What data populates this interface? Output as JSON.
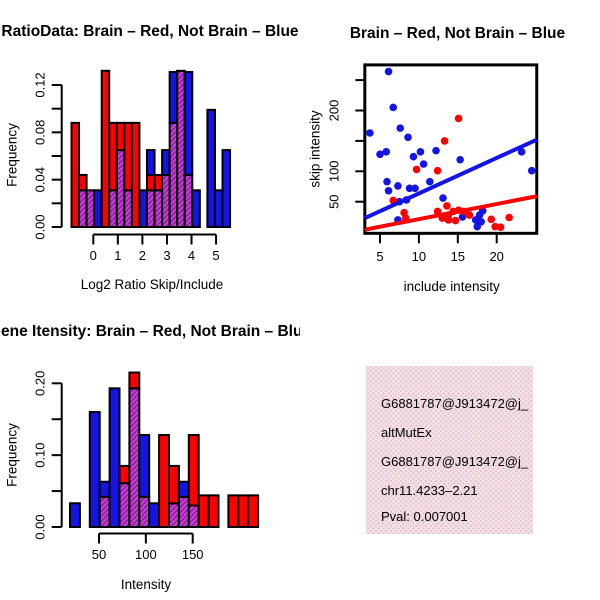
{
  "colors": {
    "red": "#FF0000",
    "blue": "#1414E6",
    "purple_dark": "#8A1FA8",
    "purple_light": "#CC3FD0",
    "black": "#000000",
    "pval_red": "#B22222",
    "box_pink": "#F8DCEA",
    "box_dot": "#C9C5AC"
  },
  "chart_data": [
    {
      "id": "hist_ratio",
      "type": "bar",
      "title": "RatioData: Brain – Red, Not Brain – Blue",
      "xlabel": "Log2 Ratio Skip/Include",
      "ylabel": "Frequency",
      "xlim": [
        -0.85,
        5.45
      ],
      "ylim": [
        0,
        0.138
      ],
      "bin_width": 0.3,
      "grid": false,
      "xticks": {
        "values": [
          0,
          1,
          2,
          3,
          4,
          5
        ],
        "labels": [
          "0",
          "1",
          "2",
          "3",
          "4",
          "5"
        ]
      },
      "yticks": {
        "values": [
          0,
          0.02,
          0.04,
          0.06,
          0.08,
          0.1,
          0.12
        ],
        "labels": [
          "0.00",
          "",
          "0.04",
          "",
          "0.08",
          "",
          "0.12"
        ]
      },
      "series_note": "segments are stacked bottom-up; purple = red/blue overlap hatch",
      "bins": [
        {
          "segments": [
            [
              "red",
              0.088
            ]
          ]
        },
        {
          "segments": [
            [
              "purple",
              0.031
            ],
            [
              "red",
              0.044
            ]
          ]
        },
        {
          "segments": [
            [
              "purple",
              0.031
            ]
          ]
        },
        {
          "segments": [
            [
              "blue",
              0.031
            ]
          ]
        },
        {
          "segments": [
            [
              "red",
              0.132
            ]
          ]
        },
        {
          "segments": [
            [
              "purple",
              0.031
            ],
            [
              "red",
              0.088
            ]
          ]
        },
        {
          "segments": [
            [
              "purple",
              0.065
            ],
            [
              "red",
              0.088
            ]
          ]
        },
        {
          "segments": [
            [
              "purple",
              0.031
            ],
            [
              "red",
              0.088
            ]
          ]
        },
        {
          "segments": [
            [
              "red",
              0.088
            ]
          ]
        },
        {
          "segments": [
            [
              "blue",
              0.031
            ]
          ]
        },
        {
          "segments": [
            [
              "purple",
              0.031
            ],
            [
              "red",
              0.044
            ],
            [
              "blue",
              0.065
            ]
          ]
        },
        {
          "segments": [
            [
              "purple",
              0.031
            ],
            [
              "red",
              0.044
            ]
          ]
        },
        {
          "segments": [
            [
              "purple",
              0.044
            ],
            [
              "blue",
              0.065
            ]
          ]
        },
        {
          "segments": [
            [
              "purple",
              0.088
            ],
            [
              "blue",
              0.131
            ]
          ]
        },
        {
          "segments": [
            [
              "purple",
              0.132
            ]
          ]
        },
        {
          "segments": [
            [
              "purple",
              0.044
            ],
            [
              "blue",
              0.131
            ]
          ]
        },
        {
          "segments": [
            [
              "blue",
              0.031
            ]
          ]
        },
        {
          "segments": []
        },
        {
          "segments": [
            [
              "blue",
              0.099
            ]
          ]
        },
        {
          "segments": [
            [
              "blue",
              0.031
            ]
          ]
        },
        {
          "segments": [
            [
              "blue",
              0.065
            ]
          ]
        }
      ]
    },
    {
      "id": "scatter_intensity",
      "type": "scatter",
      "title": "Brain – Red, Not Brain – Blue",
      "xlabel": "include intensity",
      "ylabel": "skip intensity",
      "xlim": [
        3.05,
        25.15
      ],
      "ylim": [
        -2,
        275
      ],
      "grid": false,
      "xticks": {
        "values": [
          5,
          10,
          15,
          20
        ],
        "labels": [
          "5",
          "10",
          "15",
          "20"
        ]
      },
      "yticks": {
        "values": [
          50,
          100,
          150,
          200,
          250
        ],
        "labels": [
          "50",
          "100",
          "",
          "200",
          ""
        ]
      },
      "series": [
        {
          "name": "blue",
          "points": [
            [
              6.1,
              264
            ],
            [
              6.7,
              205
            ],
            [
              3.7,
              163
            ],
            [
              7.6,
              171
            ],
            [
              8.6,
              156
            ],
            [
              5.8,
              132
            ],
            [
              5.0,
              128
            ],
            [
              10.2,
              132
            ],
            [
              9.3,
              124
            ],
            [
              12.2,
              134
            ],
            [
              10.6,
              112
            ],
            [
              15.3,
              119
            ],
            [
              23.2,
              132
            ],
            [
              24.5,
              101
            ],
            [
              11.4,
              83
            ],
            [
              5.9,
              83
            ],
            [
              6.1,
              68
            ],
            [
              7.3,
              76
            ],
            [
              8.8,
              72
            ],
            [
              9.5,
              72
            ],
            [
              7.5,
              50
            ],
            [
              8.4,
              53
            ],
            [
              13.1,
              56
            ],
            [
              7.3,
              20
            ],
            [
              18.2,
              35
            ],
            [
              17.3,
              20
            ],
            [
              18.0,
              17
            ],
            [
              15.6,
              25
            ],
            [
              17.5,
              9
            ],
            [
              17.8,
              28
            ]
          ]
        },
        {
          "name": "red",
          "points": [
            [
              15.1,
              187
            ],
            [
              13.3,
              150
            ],
            [
              9.7,
              103
            ],
            [
              12.4,
              101
            ],
            [
              6.7,
              52
            ],
            [
              8.1,
              32
            ],
            [
              8.3,
              23
            ],
            [
              12.4,
              34
            ],
            [
              13.6,
              43
            ],
            [
              13.8,
              28
            ],
            [
              14.4,
              34
            ],
            [
              15.1,
              36
            ],
            [
              15.8,
              34
            ],
            [
              13.0,
              23
            ],
            [
              13.8,
              20
            ],
            [
              14.7,
              19
            ],
            [
              16.5,
              28
            ],
            [
              19.3,
              21
            ],
            [
              19.8,
              9
            ],
            [
              20.5,
              8
            ],
            [
              21.6,
              24
            ]
          ]
        }
      ],
      "lines": [
        {
          "color": "blue",
          "x1": 3.05,
          "y1": 23,
          "x2": 25.15,
          "y2": 152
        },
        {
          "color": "red",
          "x1": 3.05,
          "y1": 4,
          "x2": 25.15,
          "y2": 59
        }
      ]
    },
    {
      "id": "hist_intensity",
      "type": "bar",
      "title": "Gene Itensity: Brain – Red, Not Brain – Blue",
      "xlabel": "Intensity",
      "ylabel": "Frequency",
      "xlim": [
        20,
        210
      ],
      "ylim": [
        0,
        0.225
      ],
      "bin_width": 10,
      "grid": false,
      "xticks": {
        "values": [
          50,
          100,
          150
        ],
        "labels": [
          "50",
          "100",
          "150"
        ]
      },
      "yticks": {
        "values": [
          0,
          0.05,
          0.1,
          0.15,
          0.2
        ],
        "labels": [
          "0.00",
          "",
          "0.10",
          "",
          "0.20"
        ]
      },
      "bins": [
        {
          "segments": [
            [
              "blue",
              0.033
            ]
          ]
        },
        {
          "segments": []
        },
        {
          "segments": [
            [
              "blue",
              0.16
            ]
          ]
        },
        {
          "segments": [
            [
              "purple",
              0.042
            ],
            [
              "blue",
              0.063
            ]
          ]
        },
        {
          "segments": [
            [
              "blue",
              0.193
            ]
          ]
        },
        {
          "segments": [
            [
              "purple",
              0.061
            ],
            [
              "red",
              0.085
            ]
          ]
        },
        {
          "segments": [
            [
              "purple",
              0.193
            ],
            [
              "red",
              0.215
            ]
          ]
        },
        {
          "segments": [
            [
              "purple",
              0.042
            ],
            [
              "blue",
              0.128
            ]
          ]
        },
        {
          "segments": [
            [
              "blue",
              0.033
            ]
          ]
        },
        {
          "segments": [
            [
              "red",
              0.128
            ]
          ]
        },
        {
          "segments": [
            [
              "purple",
              0.033
            ],
            [
              "red",
              0.085
            ]
          ]
        },
        {
          "segments": [
            [
              "purple",
              0.042
            ],
            [
              "blue",
              0.063
            ]
          ]
        },
        {
          "segments": [
            [
              "purple",
              0.03
            ],
            [
              "red",
              0.128
            ]
          ]
        },
        {
          "segments": [
            [
              "red",
              0.044
            ]
          ]
        },
        {
          "segments": [
            [
              "red",
              0.044
            ]
          ]
        },
        {
          "segments": []
        },
        {
          "segments": [
            [
              "red",
              0.044
            ]
          ]
        },
        {
          "segments": [
            [
              "red",
              0.044
            ]
          ]
        },
        {
          "segments": [
            [
              "red",
              0.044
            ]
          ]
        }
      ]
    }
  ],
  "info_box": {
    "lines": [
      {
        "text": "G6881787@J913472@j_",
        "color": "#000000"
      },
      {
        "text": "altMutEx",
        "color": "#000000"
      },
      {
        "text": "G6881787@J913472@j_",
        "color": "#000000"
      },
      {
        "text": "chr11.4233–2.21",
        "color": "#000000"
      },
      {
        "text": "Pval: 0.007001",
        "color": "#B22222"
      }
    ]
  }
}
